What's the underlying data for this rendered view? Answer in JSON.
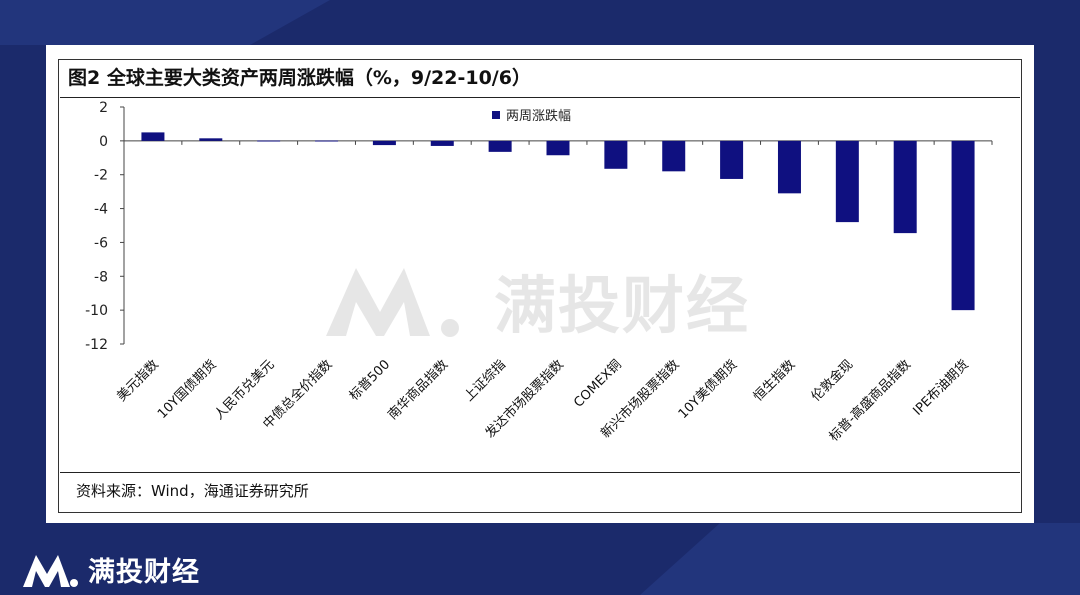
{
  "header": {
    "title": "图2  全球主要大类资产两周涨跌幅（%，9/22-10/6）"
  },
  "footer": {
    "source": "资料来源：Wind，海通证券研究所"
  },
  "watermark": {
    "text": "满投财经"
  },
  "brand": {
    "name": "满投财经"
  },
  "colors": {
    "bar": "#0f1080",
    "background": "#1b2a6b"
  },
  "chart_data": {
    "type": "bar",
    "title": "图2  全球主要大类资产两周涨跌幅（%，9/22-10/6）",
    "categories": [
      "美元指数",
      "10Y国债期货",
      "人民币兑美元",
      "中债总全价指数",
      "标普500",
      "南华商品指数",
      "上证综指",
      "发达市场股票指数",
      "COMEX铜",
      "新兴市场股票指数",
      "10Y美债期货",
      "恒生指数",
      "伦敦金现",
      "标普-高盛商品指数",
      "IPE布油期货"
    ],
    "series": [
      {
        "name": "两周涨跌幅",
        "values": [
          0.5,
          0.15,
          0.02,
          0.02,
          -0.25,
          -0.3,
          -0.65,
          -0.85,
          -1.65,
          -1.8,
          -2.25,
          -3.1,
          -4.8,
          -5.45,
          -10.0
        ]
      }
    ],
    "yticks": [
      "2",
      "0",
      "-2",
      "-4",
      "-6",
      "-8",
      "-10",
      "-12"
    ],
    "ylim": [
      -12,
      2
    ],
    "legend": "top-center",
    "grid": false
  }
}
